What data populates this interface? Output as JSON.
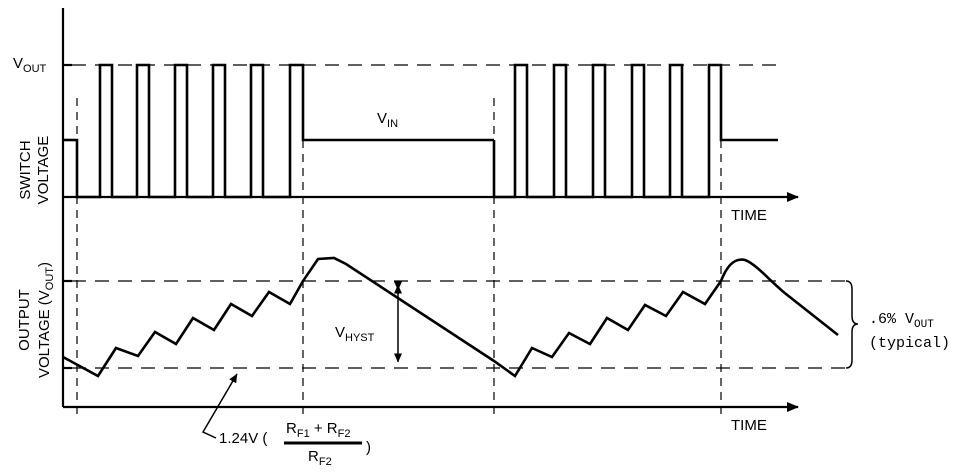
{
  "top_panel": {
    "axis_label_line1": "SWITCH",
    "axis_label_line2": "VOLTAGE",
    "vout_main": "V",
    "vout_sub": "OUT",
    "vin_main": "V",
    "vin_sub": "IN",
    "time_label": "TIME"
  },
  "bottom_panel": {
    "axis_label_line1": "OUTPUT",
    "axis_label_line2_main": "VOLTAGE (V",
    "axis_label_line2_sub": "OUT",
    "axis_label_line2_end": ")",
    "vhyst_main": "V",
    "vhyst_sub": "HYST",
    "time_label": "TIME",
    "ripple_line1_main": ".6% V",
    "ripple_line1_sub": "OUT",
    "ripple_line2": "(typical)",
    "formula_prefix": "1.24V (",
    "formula_num_r1": "R",
    "formula_num_r1_sub": "F1",
    "formula_plus": " + R",
    "formula_num_r2_sub": "F2",
    "formula_den": "R",
    "formula_den_sub": "F2",
    "formula_suffix": ")"
  }
}
